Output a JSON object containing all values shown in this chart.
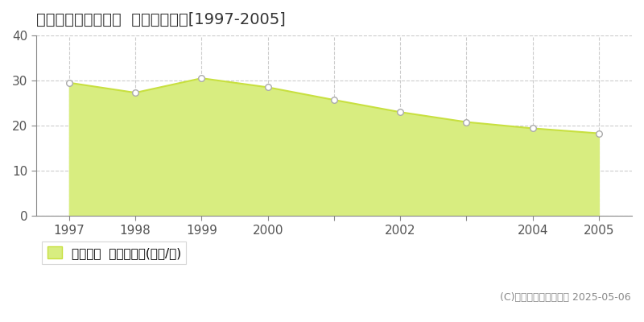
{
  "title": "邑楽郡大泉町寄木戸  基準地価推移[1997-2005]",
  "years": [
    1997,
    1998,
    1999,
    2000,
    2001,
    2002,
    2003,
    2004,
    2005
  ],
  "values": [
    29.5,
    27.3,
    30.5,
    28.5,
    25.7,
    23.0,
    20.8,
    19.4,
    18.3
  ],
  "line_color": "#c8e040",
  "fill_color": "#d8ed80",
  "marker_color": "#ffffff",
  "marker_edge_color": "#aaaaaa",
  "background_color": "#ffffff",
  "grid_color": "#cccccc",
  "ylabel_ticks": [
    0,
    10,
    20,
    30,
    40
  ],
  "ylim": [
    0,
    40
  ],
  "xlim": [
    1996.5,
    2005.5
  ],
  "legend_label": "基準地価  平均坪単価(万円/坪)",
  "copyright_text": "(C)土地価格ドットコム 2025-05-06",
  "title_fontsize": 14,
  "tick_fontsize": 11,
  "legend_fontsize": 11,
  "copyright_fontsize": 9
}
